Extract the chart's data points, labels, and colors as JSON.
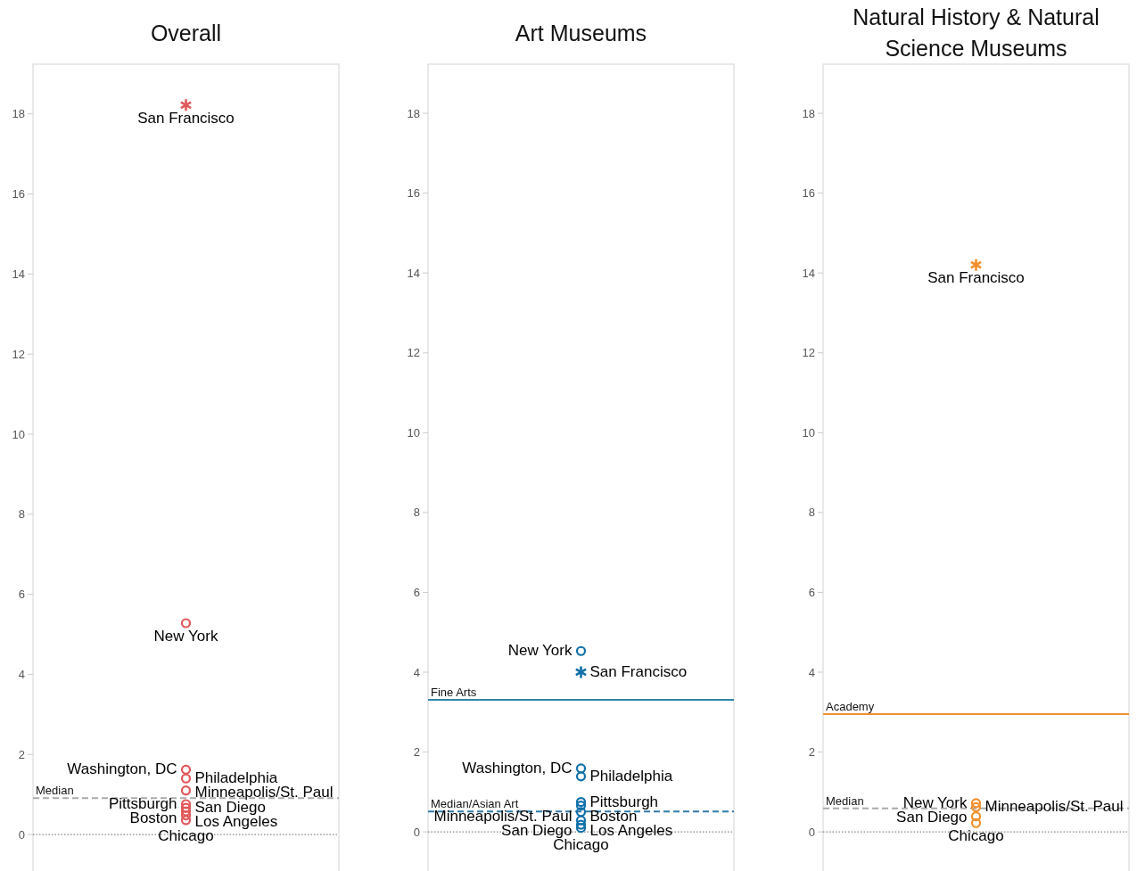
{
  "chart_data": [
    {
      "type": "scatter",
      "title": "Overall",
      "categories": [
        null
      ],
      "ylim": [
        -0.91,
        19.24
      ],
      "yticks": [
        0,
        2,
        4,
        6,
        8,
        10,
        12,
        14,
        16,
        18
      ],
      "grid": false,
      "series": [
        {
          "name": "San Francisco",
          "color": "#e15759",
          "marker": "cross",
          "values": [
            18.22
          ]
        },
        {
          "name": "New York",
          "color": "#e15759",
          "marker": "circle",
          "values": [
            5.28
          ]
        },
        {
          "name": "Washington, DC",
          "color": "#e15759",
          "marker": "circle",
          "values": [
            1.62
          ]
        },
        {
          "name": "Philadelphia",
          "color": "#e15759",
          "marker": "circle",
          "values": [
            1.4
          ]
        },
        {
          "name": "Minneapolis/St. Paul",
          "color": "#e15759",
          "marker": "circle",
          "values": [
            1.1
          ]
        },
        {
          "name": "Pittsburgh",
          "color": "#e15759",
          "marker": "circle",
          "values": [
            0.76
          ]
        },
        {
          "name": "San Diego",
          "color": "#e15759",
          "marker": "circle",
          "values": [
            0.67
          ]
        },
        {
          "name": "Boston",
          "color": "#e15759",
          "marker": "circle",
          "values": [
            0.58
          ]
        },
        {
          "name": "Los Angeles",
          "color": "#e15759",
          "marker": "circle",
          "values": [
            0.48
          ]
        },
        {
          "name": "Chicago",
          "color": "#e15759",
          "marker": "circle",
          "values": [
            0.36
          ]
        }
      ],
      "ref_lines": [
        {
          "axis": "y",
          "value": 0.91,
          "label": "Median",
          "color": "#aaaaaa",
          "line_style": "dashed"
        },
        {
          "axis": "y",
          "value": 0,
          "label": null,
          "color": "#666666",
          "line_style": "dotted"
        }
      ]
    },
    {
      "type": "scatter",
      "title": "Art Museums",
      "categories": [
        null
      ],
      "ylim": [
        -0.98,
        19.23
      ],
      "yticks": [
        0,
        2,
        4,
        6,
        8,
        10,
        12,
        14,
        16,
        18
      ],
      "grid": false,
      "series": [
        {
          "name": "New York",
          "color": "#1170aa",
          "marker": "circle",
          "values": [
            4.53
          ]
        },
        {
          "name": "San Francisco",
          "color": "#1170aa",
          "marker": "cross",
          "values": [
            4.0
          ]
        },
        {
          "name": "Washington, DC",
          "color": "#1170aa",
          "marker": "circle",
          "values": [
            1.59
          ]
        },
        {
          "name": "Philadelphia",
          "color": "#1170aa",
          "marker": "circle",
          "values": [
            1.39
          ]
        },
        {
          "name": "Pittsburgh",
          "color": "#1170aa",
          "marker": "circle",
          "values": [
            0.75
          ]
        },
        {
          "name": "Boston",
          "color": "#1170aa",
          "marker": "circle",
          "values": [
            0.66
          ]
        },
        {
          "name": "Minneapolis/St. Paul",
          "color": "#1170aa",
          "marker": "circle",
          "values": [
            0.5
          ]
        },
        {
          "name": "Los Angeles",
          "color": "#1170aa",
          "marker": "circle",
          "values": [
            0.29
          ]
        },
        {
          "name": "San Diego",
          "color": "#1170aa",
          "marker": "circle",
          "values": [
            0.18
          ]
        },
        {
          "name": "Chicago",
          "color": "#1170aa",
          "marker": "circle",
          "values": [
            0.1
          ]
        }
      ],
      "ref_lines": [
        {
          "axis": "y",
          "value": 3.31,
          "label": "Fine Arts",
          "color": "#2f85a8",
          "line_style": "solid"
        },
        {
          "axis": "y",
          "value": 0.51,
          "label": "Median/Asian Art",
          "color": "#2f7ba8",
          "line_style": "dashed"
        },
        {
          "axis": "y",
          "value": 0,
          "label": null,
          "color": "#666666",
          "line_style": "dotted"
        }
      ]
    },
    {
      "type": "scatter",
      "title": "Natural History & Natural Science Museums",
      "categories": [
        null
      ],
      "ylim": [
        -0.98,
        19.23
      ],
      "yticks": [
        0,
        2,
        4,
        6,
        8,
        10,
        12,
        14,
        16,
        18
      ],
      "grid": false,
      "series": [
        {
          "name": "San Francisco",
          "color": "#f28e2b",
          "marker": "cross",
          "values": [
            14.2
          ]
        },
        {
          "name": "New York",
          "color": "#f28e2b",
          "marker": "circle",
          "values": [
            0.72
          ]
        },
        {
          "name": "Minneapolis/St. Paul",
          "color": "#f28e2b",
          "marker": "circle",
          "values": [
            0.62
          ]
        },
        {
          "name": "San Diego",
          "color": "#f28e2b",
          "marker": "circle",
          "values": [
            0.39
          ]
        },
        {
          "name": "Chicago",
          "color": "#f28e2b",
          "marker": "circle",
          "values": [
            0.22
          ]
        }
      ],
      "ref_lines": [
        {
          "axis": "y",
          "value": 2.95,
          "label": "Academy",
          "color": "#f28e2b",
          "line_style": "solid"
        },
        {
          "axis": "y",
          "value": 0.59,
          "label": "Median",
          "color": "#aaaaaa",
          "line_style": "dashed"
        },
        {
          "axis": "y",
          "value": 0,
          "label": null,
          "color": "#666666",
          "line_style": "dotted"
        }
      ]
    }
  ]
}
